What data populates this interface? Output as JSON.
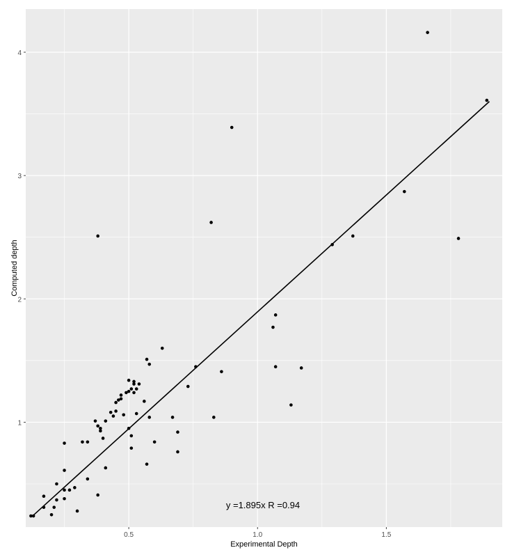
{
  "chart_data": {
    "type": "scatter",
    "xlabel": "Experimental Depth",
    "ylabel": "Computed depth",
    "xlim": [
      0.1,
      1.95
    ],
    "ylim": [
      0.15,
      4.35
    ],
    "x_ticks": [
      0.5,
      1.0,
      1.5
    ],
    "x_tick_labels": [
      "0.5",
      "1.0",
      "1.5"
    ],
    "x_minor": [
      0.25,
      0.75,
      1.25,
      1.75
    ],
    "y_ticks": [
      1,
      2,
      3,
      4
    ],
    "y_tick_labels": [
      "1",
      "2",
      "3",
      "4"
    ],
    "y_minor": [
      0.5,
      1.5,
      2.5,
      3.5
    ],
    "grid": true,
    "panel_background": "#ebebeb",
    "grid_color": "#ffffff",
    "point_color": "#000000",
    "annotation": "y =1.895x  R =0.94",
    "fit_line": {
      "slope": 1.895,
      "x_start": 0.13,
      "x_end": 1.9
    },
    "points": [
      {
        "x": 0.12,
        "y": 0.24
      },
      {
        "x": 0.13,
        "y": 0.24
      },
      {
        "x": 0.17,
        "y": 0.31
      },
      {
        "x": 0.17,
        "y": 0.4
      },
      {
        "x": 0.2,
        "y": 0.25
      },
      {
        "x": 0.21,
        "y": 0.31
      },
      {
        "x": 0.22,
        "y": 0.37
      },
      {
        "x": 0.22,
        "y": 0.5
      },
      {
        "x": 0.25,
        "y": 0.38
      },
      {
        "x": 0.25,
        "y": 0.45
      },
      {
        "x": 0.25,
        "y": 0.61
      },
      {
        "x": 0.25,
        "y": 0.83
      },
      {
        "x": 0.27,
        "y": 0.45
      },
      {
        "x": 0.29,
        "y": 0.47
      },
      {
        "x": 0.3,
        "y": 0.28
      },
      {
        "x": 0.32,
        "y": 0.84
      },
      {
        "x": 0.34,
        "y": 0.54
      },
      {
        "x": 0.34,
        "y": 0.84
      },
      {
        "x": 0.37,
        "y": 1.01
      },
      {
        "x": 0.38,
        "y": 0.41
      },
      {
        "x": 0.38,
        "y": 0.97
      },
      {
        "x": 0.38,
        "y": 2.51
      },
      {
        "x": 0.39,
        "y": 0.93
      },
      {
        "x": 0.39,
        "y": 0.95
      },
      {
        "x": 0.4,
        "y": 0.87
      },
      {
        "x": 0.41,
        "y": 0.63
      },
      {
        "x": 0.41,
        "y": 1.01
      },
      {
        "x": 0.43,
        "y": 1.08
      },
      {
        "x": 0.44,
        "y": 1.05
      },
      {
        "x": 0.45,
        "y": 1.09
      },
      {
        "x": 0.45,
        "y": 1.16
      },
      {
        "x": 0.46,
        "y": 1.18
      },
      {
        "x": 0.47,
        "y": 1.19
      },
      {
        "x": 0.47,
        "y": 1.22
      },
      {
        "x": 0.48,
        "y": 1.06
      },
      {
        "x": 0.49,
        "y": 1.24
      },
      {
        "x": 0.5,
        "y": 0.95
      },
      {
        "x": 0.5,
        "y": 1.25
      },
      {
        "x": 0.5,
        "y": 1.34
      },
      {
        "x": 0.51,
        "y": 0.79
      },
      {
        "x": 0.51,
        "y": 0.89
      },
      {
        "x": 0.51,
        "y": 1.27
      },
      {
        "x": 0.52,
        "y": 1.24
      },
      {
        "x": 0.52,
        "y": 1.31
      },
      {
        "x": 0.52,
        "y": 1.33
      },
      {
        "x": 0.53,
        "y": 1.07
      },
      {
        "x": 0.53,
        "y": 1.27
      },
      {
        "x": 0.54,
        "y": 1.31
      },
      {
        "x": 0.56,
        "y": 1.17
      },
      {
        "x": 0.57,
        "y": 0.66
      },
      {
        "x": 0.57,
        "y": 1.51
      },
      {
        "x": 0.58,
        "y": 1.04
      },
      {
        "x": 0.58,
        "y": 1.47
      },
      {
        "x": 0.6,
        "y": 0.84
      },
      {
        "x": 0.63,
        "y": 1.6
      },
      {
        "x": 0.67,
        "y": 1.04
      },
      {
        "x": 0.69,
        "y": 0.76
      },
      {
        "x": 0.69,
        "y": 0.92
      },
      {
        "x": 0.73,
        "y": 1.29
      },
      {
        "x": 0.76,
        "y": 1.45
      },
      {
        "x": 0.82,
        "y": 2.62
      },
      {
        "x": 0.83,
        "y": 1.04
      },
      {
        "x": 0.86,
        "y": 1.41
      },
      {
        "x": 0.9,
        "y": 3.39
      },
      {
        "x": 1.06,
        "y": 1.77
      },
      {
        "x": 1.07,
        "y": 1.45
      },
      {
        "x": 1.07,
        "y": 1.87
      },
      {
        "x": 1.13,
        "y": 1.14
      },
      {
        "x": 1.17,
        "y": 1.44
      },
      {
        "x": 1.29,
        "y": 2.44
      },
      {
        "x": 1.37,
        "y": 2.51
      },
      {
        "x": 1.57,
        "y": 2.87
      },
      {
        "x": 1.66,
        "y": 4.16
      },
      {
        "x": 1.78,
        "y": 2.49
      },
      {
        "x": 1.89,
        "y": 3.61
      }
    ]
  }
}
